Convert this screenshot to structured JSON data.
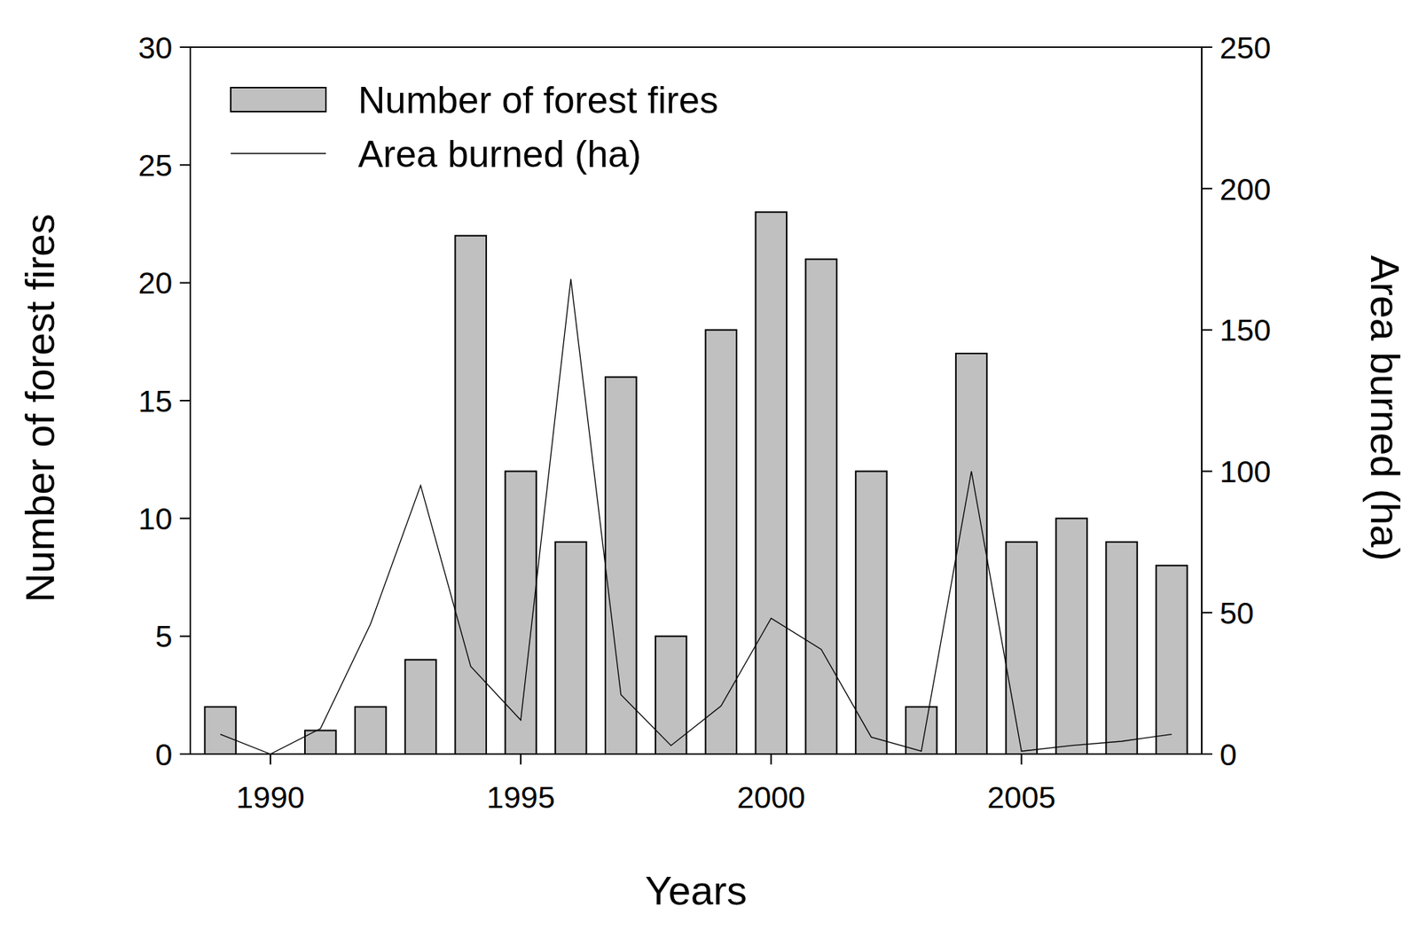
{
  "chart_data": {
    "type": "bar",
    "x_label": "Years",
    "y_label": "Number of forest fires",
    "y2_label": "Area burned (ha)",
    "x": [
      1989,
      1990,
      1991,
      1992,
      1993,
      1994,
      1995,
      1996,
      1997,
      1998,
      1999,
      2000,
      2001,
      2002,
      2003,
      2004,
      2005,
      2006,
      2007,
      2008
    ],
    "xlim": [
      1988.4,
      2008.6
    ],
    "xticks": [
      1990,
      1995,
      2000,
      2005
    ],
    "ylim": [
      0,
      30
    ],
    "yticks": [
      0,
      5,
      10,
      15,
      20,
      25,
      30
    ],
    "y2lim": [
      0,
      250
    ],
    "y2ticks": [
      0,
      50,
      100,
      150,
      200,
      250
    ],
    "legend": "upper left",
    "grid": false,
    "series": [
      {
        "name": "Number of forest fires",
        "type": "bar",
        "color": "#c0c0c0",
        "values": [
          2,
          0,
          1,
          2,
          4,
          22,
          12,
          9,
          16,
          5,
          18,
          23,
          21,
          12,
          2,
          17,
          9,
          10,
          9,
          8
        ]
      },
      {
        "name": "Area burned (ha)",
        "type": "line",
        "axis": "y2",
        "color": "#000000",
        "values": [
          7,
          0,
          9,
          46,
          95,
          31,
          12,
          168,
          21,
          3,
          17,
          48,
          37,
          6,
          1,
          100,
          1,
          3,
          4.5,
          7
        ]
      }
    ]
  }
}
